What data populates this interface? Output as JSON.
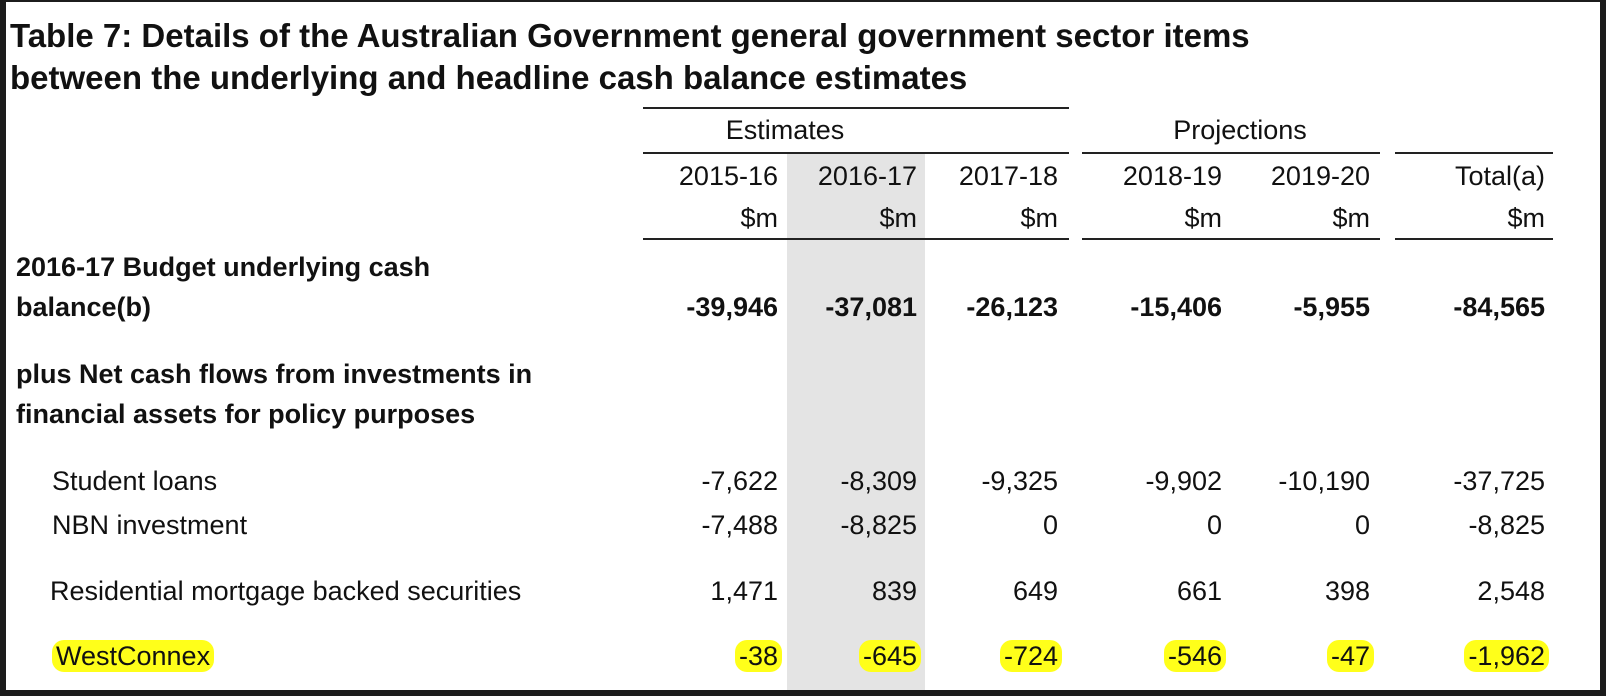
{
  "title_lines": [
    "Table 7: Details of the Australian Government general government sector items",
    "between the underlying and headline cash balance estimates"
  ],
  "table": {
    "groups": [
      "Estimates",
      "Projections"
    ],
    "columns": [
      {
        "year": "2015-16",
        "unit": "$m"
      },
      {
        "year": "2016-17",
        "unit": "$m"
      },
      {
        "year": "2017-18",
        "unit": "$m"
      },
      {
        "year": "2018-19",
        "unit": "$m"
      },
      {
        "year": "2019-20",
        "unit": "$m"
      },
      {
        "year": "Total(a)",
        "unit": "$m"
      }
    ],
    "rows": [
      {
        "label_lines": [
          "2016-17 Budget underlying cash",
          "balance(b)"
        ],
        "values": [
          "-39,946",
          "-37,081",
          "-26,123",
          "-15,406",
          "-5,955",
          "-84,565"
        ]
      },
      {
        "label_lines": [
          "plus Net cash flows from investments in",
          "financial assets for policy purposes"
        ]
      },
      {
        "label_lines": [
          "Student loans"
        ],
        "values": [
          "-7,622",
          "-8,309",
          "-9,325",
          "-9,902",
          "-10,190",
          "-37,725"
        ]
      },
      {
        "label_lines": [
          "NBN investment"
        ],
        "values": [
          "-7,488",
          "-8,825",
          "0",
          "0",
          "0",
          "-8,825"
        ]
      },
      {
        "label_lines": [
          "Residential mortgage backed securities"
        ],
        "values": [
          "1,471",
          "839",
          "649",
          "661",
          "398",
          "2,548"
        ]
      },
      {
        "label_lines": [
          "WestConnex"
        ],
        "values": [
          "-38",
          "-645",
          "-724",
          "-546",
          "-47",
          "-1,962"
        ]
      }
    ]
  }
}
